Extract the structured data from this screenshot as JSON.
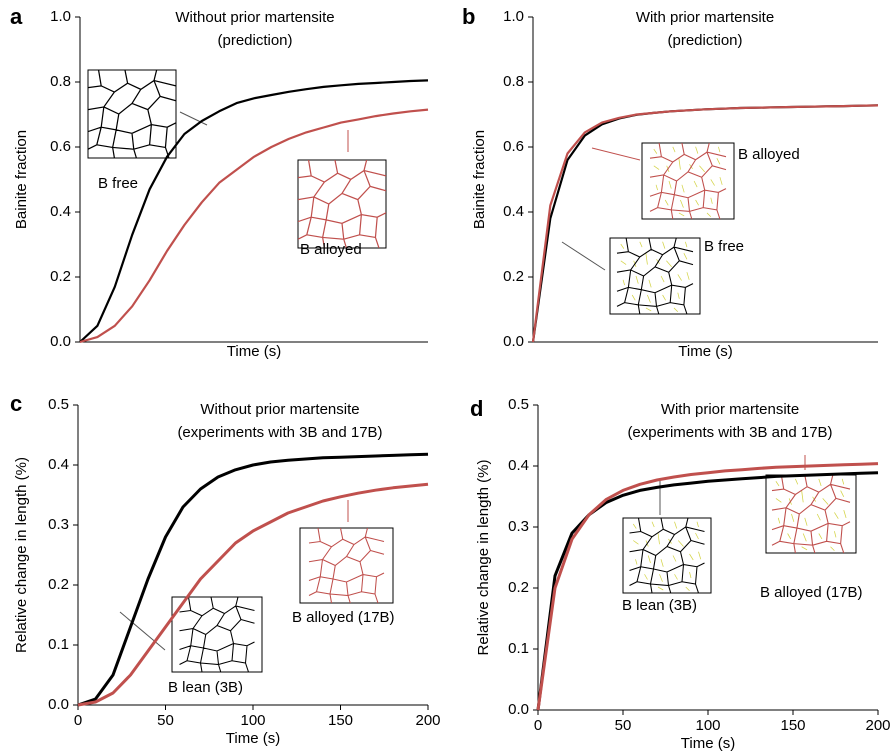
{
  "chart_data": [
    {
      "type": "line",
      "panel_label": "a",
      "title": "Without prior martensite",
      "subtitle": "(prediction)",
      "xlabel": "Time (s)",
      "ylabel": "Bainite fraction",
      "ylim": [
        0,
        1
      ],
      "yticks": [
        {
          "value": 0,
          "label": "0.0"
        },
        0.2,
        0.4,
        0.6,
        0.8,
        {
          "value": 1,
          "label": "1.0"
        }
      ],
      "series": [
        {
          "name": "B free",
          "color": "#000000",
          "values": [
            0,
            0.05,
            0.17,
            0.33,
            0.47,
            0.57,
            0.64,
            0.68,
            0.71,
            0.735,
            0.75,
            0.76,
            0.77,
            0.778,
            0.785,
            0.79,
            0.794,
            0.797,
            0.8,
            0.803,
            0.805
          ]
        },
        {
          "name": "B alloyed",
          "color": "#c0504d",
          "values": [
            0,
            0.015,
            0.05,
            0.11,
            0.19,
            0.28,
            0.36,
            0.43,
            0.49,
            0.53,
            0.57,
            0.6,
            0.625,
            0.645,
            0.66,
            0.675,
            0.685,
            0.695,
            0.703,
            0.71,
            0.715
          ]
        }
      ]
    },
    {
      "type": "line",
      "panel_label": "b",
      "title": "With prior martensite",
      "subtitle": "(prediction)",
      "xlabel": "Time (s)",
      "ylabel": "Bainite fraction",
      "ylim": [
        0,
        1
      ],
      "yticks": [
        {
          "value": 0,
          "label": "0.0"
        },
        0.2,
        0.4,
        0.6,
        0.8,
        {
          "value": 1,
          "label": "1.0"
        }
      ],
      "series": [
        {
          "name": "B free",
          "color": "#000000",
          "values": [
            0,
            0.38,
            0.56,
            0.635,
            0.67,
            0.688,
            0.699,
            0.705,
            0.71,
            0.713,
            0.716,
            0.718,
            0.72,
            0.721,
            0.722,
            0.723,
            0.724,
            0.725,
            0.726,
            0.727,
            0.728
          ]
        },
        {
          "name": "B alloyed",
          "color": "#c0504d",
          "values": [
            0,
            0.42,
            0.58,
            0.645,
            0.675,
            0.69,
            0.7,
            0.705,
            0.71,
            0.713,
            0.716,
            0.718,
            0.72,
            0.721,
            0.722,
            0.723,
            0.724,
            0.725,
            0.726,
            0.727,
            0.728
          ]
        }
      ]
    },
    {
      "type": "line",
      "panel_label": "c",
      "title": "Without prior martensite",
      "subtitle": "(experiments with 3B and 17B)",
      "xlabel": "Time (s)",
      "ylabel": "Relative change in length (%)",
      "xlim": [
        0,
        200
      ],
      "xticks": [
        0,
        50,
        100,
        150,
        200
      ],
      "ylim": [
        0,
        0.5
      ],
      "yticks": [
        {
          "value": 0,
          "label": "0.0"
        },
        0.1,
        0.2,
        0.3,
        0.4,
        0.5
      ],
      "x": [
        0,
        10,
        20,
        30,
        40,
        50,
        60,
        70,
        80,
        90,
        100,
        110,
        120,
        130,
        140,
        150,
        160,
        170,
        180,
        190,
        200
      ],
      "series": [
        {
          "name": "B lean (3B)",
          "color": "#000000",
          "values": [
            0,
            0.01,
            0.05,
            0.13,
            0.21,
            0.28,
            0.33,
            0.36,
            0.38,
            0.392,
            0.4,
            0.405,
            0.408,
            0.41,
            0.412,
            0.413,
            0.414,
            0.415,
            0.416,
            0.417,
            0.418
          ]
        },
        {
          "name": "B alloyed (17B)",
          "color": "#c0504d",
          "values": [
            0,
            0.005,
            0.02,
            0.05,
            0.09,
            0.13,
            0.17,
            0.21,
            0.24,
            0.27,
            0.29,
            0.305,
            0.32,
            0.33,
            0.34,
            0.347,
            0.353,
            0.358,
            0.362,
            0.365,
            0.368
          ]
        }
      ]
    },
    {
      "type": "line",
      "panel_label": "d",
      "title": "With prior martensite",
      "subtitle": "(experiments with 3B and 17B)",
      "xlabel": "Time (s)",
      "ylabel": "Relative change in length (%)",
      "xlim": [
        0,
        200
      ],
      "xticks": [
        0,
        50,
        100,
        150,
        200
      ],
      "ylim": [
        0,
        0.5
      ],
      "yticks": [
        {
          "value": 0,
          "label": "0.0"
        },
        0.1,
        0.2,
        0.3,
        0.4,
        0.5
      ],
      "x": [
        0,
        10,
        20,
        30,
        40,
        50,
        60,
        70,
        80,
        90,
        100,
        110,
        120,
        130,
        140,
        150,
        160,
        170,
        180,
        190,
        200
      ],
      "series": [
        {
          "name": "B lean (3B)",
          "color": "#000000",
          "values": [
            0,
            0.22,
            0.29,
            0.32,
            0.34,
            0.352,
            0.36,
            0.365,
            0.369,
            0.372,
            0.375,
            0.377,
            0.379,
            0.381,
            0.383,
            0.384,
            0.385,
            0.386,
            0.387,
            0.388,
            0.389
          ]
        },
        {
          "name": "B alloyed (17B)",
          "color": "#c0504d",
          "values": [
            0,
            0.2,
            0.28,
            0.32,
            0.345,
            0.36,
            0.37,
            0.377,
            0.382,
            0.386,
            0.389,
            0.392,
            0.394,
            0.396,
            0.398,
            0.399,
            0.4,
            0.401,
            0.402,
            0.403,
            0.404
          ]
        }
      ]
    }
  ]
}
